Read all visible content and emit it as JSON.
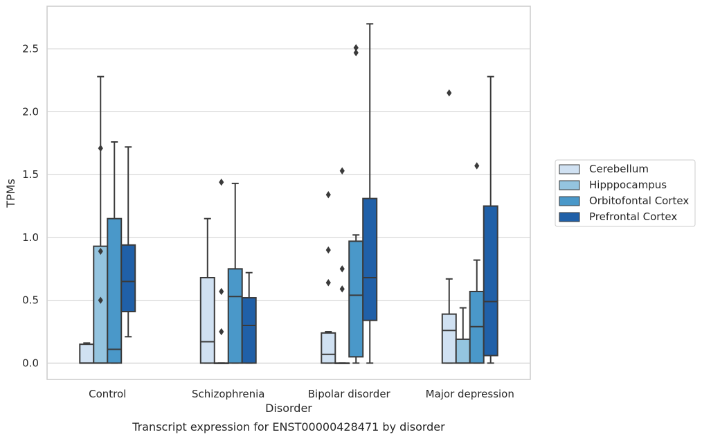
{
  "chart_data": {
    "type": "box",
    "xlabel": "Disorder",
    "ylabel": "TPMs",
    "caption": "Transcript expression for ENST00000428471 by disorder",
    "ylim": [
      -0.13,
      2.84
    ],
    "yticks": [
      "0.0",
      "0.5",
      "1.0",
      "1.5",
      "2.0",
      "2.5"
    ],
    "grid": "horizontal",
    "legend_position": "right",
    "categories": [
      "Control",
      "Schizophrenia",
      "Bipolar disorder",
      "Major depression"
    ],
    "series": [
      {
        "name": "Cerebellum",
        "color": "#d0e1f2",
        "boxes": [
          {
            "q1": 0.0,
            "median": 0.0,
            "q3": 0.15,
            "whislo": 0.0,
            "whishi": 0.16,
            "fliers": []
          },
          {
            "q1": 0.0,
            "median": 0.17,
            "q3": 0.68,
            "whislo": 0.0,
            "whishi": 1.15,
            "fliers": []
          },
          {
            "q1": 0.0,
            "median": 0.07,
            "q3": 0.24,
            "whislo": 0.0,
            "whishi": 0.25,
            "fliers": [
              1.34,
              0.9,
              0.64
            ]
          },
          {
            "q1": 0.0,
            "median": 0.26,
            "q3": 0.39,
            "whislo": 0.0,
            "whishi": 0.67,
            "fliers": [
              2.15
            ]
          }
        ]
      },
      {
        "name": "Hipppocampus",
        "color": "#94c4df",
        "boxes": [
          {
            "q1": 0.0,
            "median": 0.0,
            "q3": 0.93,
            "whislo": 0.0,
            "whishi": 2.28,
            "fliers": [
              1.71,
              0.89,
              0.5
            ]
          },
          {
            "q1": 0.0,
            "median": 0.0,
            "q3": 0.0,
            "whislo": 0.0,
            "whishi": 0.0,
            "fliers": [
              0.57,
              0.25,
              1.44
            ]
          },
          {
            "q1": 0.0,
            "median": 0.0,
            "q3": 0.0,
            "whislo": 0.0,
            "whishi": 0.0,
            "fliers": [
              1.53,
              0.75,
              0.59
            ]
          },
          {
            "q1": 0.0,
            "median": 0.0,
            "q3": 0.19,
            "whislo": 0.0,
            "whishi": 0.44,
            "fliers": []
          }
        ]
      },
      {
        "name": "Orbitofontal Cortex",
        "color": "#4a98c9",
        "boxes": [
          {
            "q1": 0.0,
            "median": 0.11,
            "q3": 1.15,
            "whislo": 0.0,
            "whishi": 1.76,
            "fliers": []
          },
          {
            "q1": 0.0,
            "median": 0.53,
            "q3": 0.75,
            "whislo": 0.0,
            "whishi": 1.43,
            "fliers": []
          },
          {
            "q1": 0.05,
            "median": 0.54,
            "q3": 0.97,
            "whislo": 0.0,
            "whishi": 1.02,
            "fliers": [
              2.47,
              2.51
            ]
          },
          {
            "q1": 0.0,
            "median": 0.29,
            "q3": 0.57,
            "whislo": 0.0,
            "whishi": 0.82,
            "fliers": [
              1.57
            ]
          }
        ]
      },
      {
        "name": "Prefrontal Cortex",
        "color": "#2060a8",
        "boxes": [
          {
            "q1": 0.41,
            "median": 0.65,
            "q3": 0.94,
            "whislo": 0.21,
            "whishi": 1.72,
            "fliers": []
          },
          {
            "q1": 0.0,
            "median": 0.3,
            "q3": 0.52,
            "whislo": 0.0,
            "whishi": 0.72,
            "fliers": []
          },
          {
            "q1": 0.34,
            "median": 0.68,
            "q3": 1.31,
            "whislo": 0.0,
            "whishi": 2.7,
            "fliers": []
          },
          {
            "q1": 0.06,
            "median": 0.49,
            "q3": 1.25,
            "whislo": 0.0,
            "whishi": 2.28,
            "fliers": []
          }
        ]
      }
    ]
  }
}
